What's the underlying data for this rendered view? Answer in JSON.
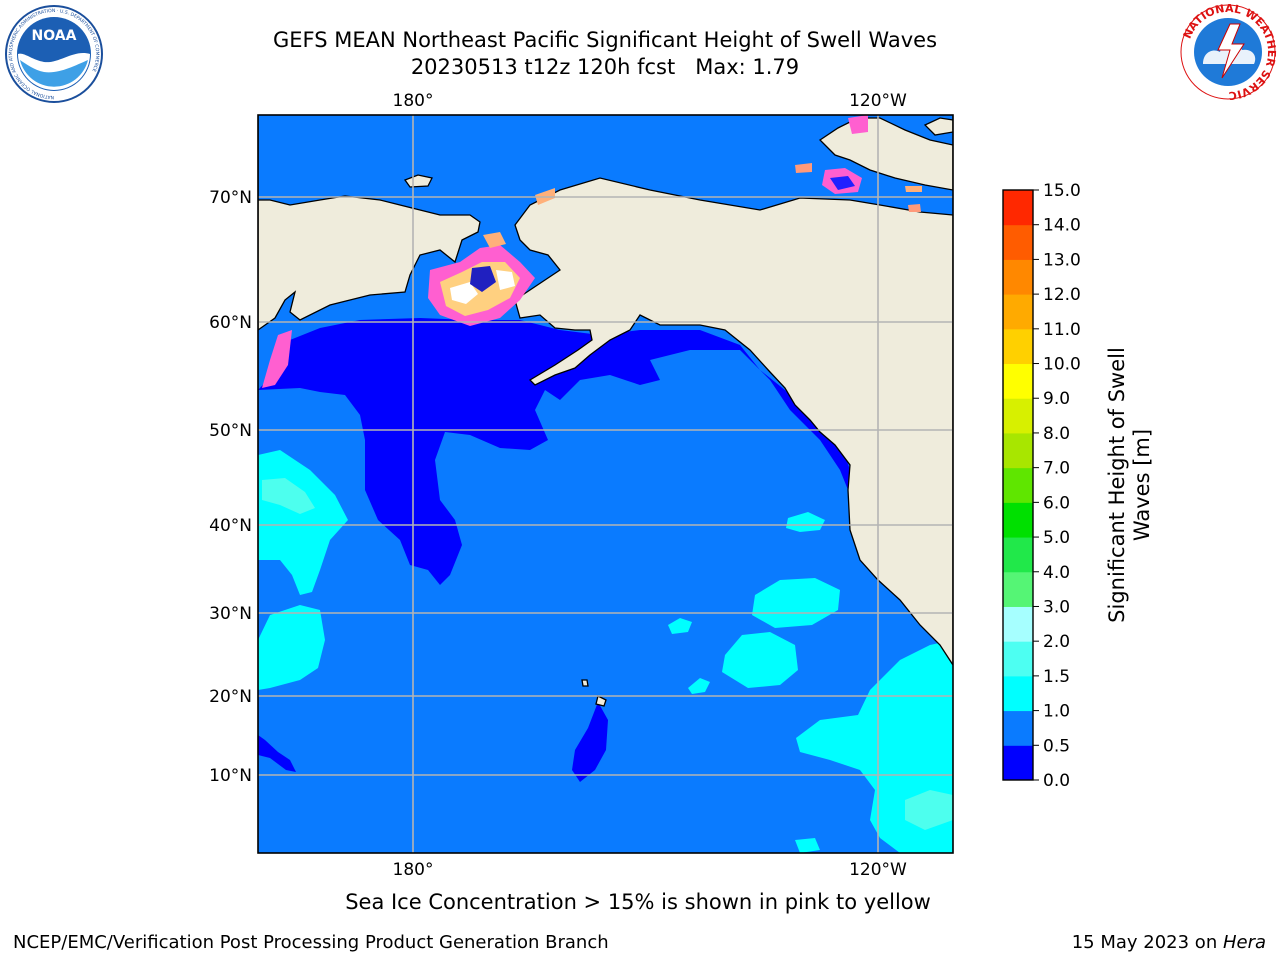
{
  "header": {
    "title_line1": "GEFS MEAN Northeast Pacific Significant Height of Swell Waves",
    "title_line2": "20230513 t12z 120h fcst   Max: 1.79",
    "left_logo_text": "NOAA",
    "left_logo_ring_text": "NATIONAL OCEANIC AND ATMOSPHERIC ADMINISTRATION · U.S. DEPARTMENT OF COMMERCE",
    "right_logo_ring_text": "NATIONAL WEATHER SERVICE"
  },
  "map": {
    "lon_labels_top": [
      "180°",
      "120°W"
    ],
    "lon_labels_bottom": [
      "180°",
      "120°W"
    ],
    "lat_labels": [
      "70°N",
      "60°N",
      "50°N",
      "40°N",
      "30°N",
      "20°N",
      "10°N"
    ],
    "colors": {
      "land": "#efecdc",
      "ocean_main": "#0a7bff",
      "deep_blue": "#0000ff",
      "cyan": "#00ffff",
      "light_cyan": "#4dffee",
      "ice_pink": "#ff5fd0",
      "ice_orange": "#ffb347",
      "grid": "#b4b4b4"
    }
  },
  "colorbar": {
    "label": "Significant Height of Swell\nWaves [m]",
    "ticks": [
      "0.0",
      "0.5",
      "1.0",
      "1.5",
      "2.0",
      "3.0",
      "4.0",
      "5.0",
      "6.0",
      "7.0",
      "8.0",
      "9.0",
      "10.0",
      "11.0",
      "12.0",
      "13.0",
      "14.0",
      "15.0"
    ],
    "colors": [
      "#0000ff",
      "#0a7bff",
      "#00ffff",
      "#4dfff2",
      "#a6ffff",
      "#55f575",
      "#21e84a",
      "#00e000",
      "#5fe600",
      "#a8e600",
      "#d7f000",
      "#ffff00",
      "#ffd000",
      "#ffaa00",
      "#ff8800",
      "#ff5c00",
      "#ff2800",
      "#ff0000"
    ]
  },
  "footer": {
    "note": "Sea Ice Concentration > 15% is shown in pink to yellow",
    "credit": "NCEP/EMC/Verification Post Processing Product Generation Branch",
    "date_prefix": "15 May 2023 on ",
    "machine": "Hera"
  }
}
